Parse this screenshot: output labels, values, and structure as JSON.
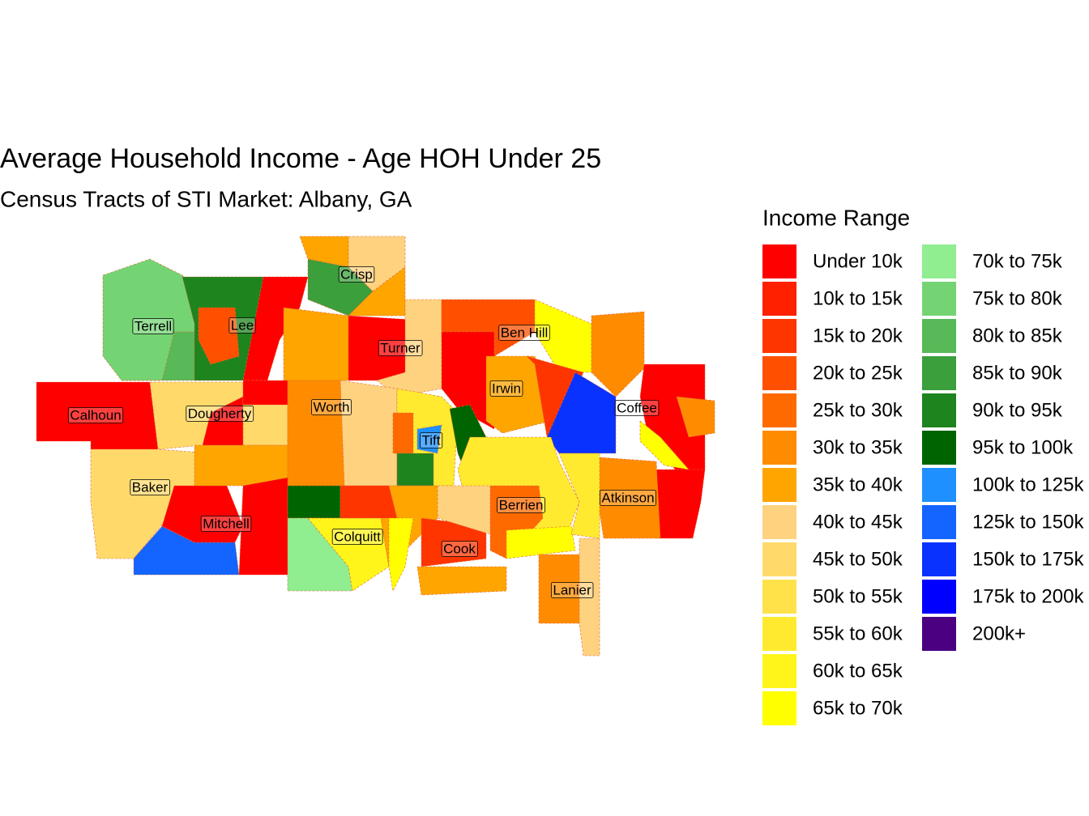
{
  "title": "Average Household Income - Age HOH Under 25",
  "subtitle": "Census Tracts of STI Market: Albany, GA",
  "legend": {
    "title": "Income Range",
    "items": [
      {
        "label": "Under 10k",
        "color": "#FF0000"
      },
      {
        "label": "10k to 15k",
        "color": "#FF2000"
      },
      {
        "label": "15k to 20k",
        "color": "#FF3500"
      },
      {
        "label": "20k to 25k",
        "color": "#FF5000"
      },
      {
        "label": "25k to 30k",
        "color": "#FF6A00"
      },
      {
        "label": "30k to 35k",
        "color": "#FF8C00"
      },
      {
        "label": "35k to 40k",
        "color": "#FFA500"
      },
      {
        "label": "40k to 45k",
        "color": "#FFD27F"
      },
      {
        "label": "45k to 50k",
        "color": "#FFDA6A"
      },
      {
        "label": "50k to 55k",
        "color": "#FFE24A"
      },
      {
        "label": "55k to 60k",
        "color": "#FFEA30"
      },
      {
        "label": "60k to 65k",
        "color": "#FFF51A"
      },
      {
        "label": "65k to 70k",
        "color": "#FFFF00"
      },
      {
        "label": "70k to 75k",
        "color": "#90EE90"
      },
      {
        "label": "75k to 80k",
        "color": "#74D474"
      },
      {
        "label": "80k to 85k",
        "color": "#57B957"
      },
      {
        "label": "85k to 90k",
        "color": "#3B9F3B"
      },
      {
        "label": "90k to 95k",
        "color": "#1E841E"
      },
      {
        "label": "95k to 100k",
        "color": "#006400"
      },
      {
        "label": "100k to 125k",
        "color": "#1E90FF"
      },
      {
        "label": "125k to 150k",
        "color": "#1464FF"
      },
      {
        "label": "150k to 175k",
        "color": "#0A32FF"
      },
      {
        "label": "175k to 200k",
        "color": "#0000FF"
      },
      {
        "label": "200k+",
        "color": "#4B0082"
      }
    ]
  },
  "counties": [
    "Terrell",
    "Lee",
    "Crisp",
    "Turner",
    "Ben Hill",
    "Irwin",
    "Coffee",
    "Calhoun",
    "Dougherty",
    "Worth",
    "Tift",
    "Baker",
    "Mitchell",
    "Colquitt",
    "Berrien",
    "Atkinson",
    "Cook",
    "Lanier"
  ]
}
